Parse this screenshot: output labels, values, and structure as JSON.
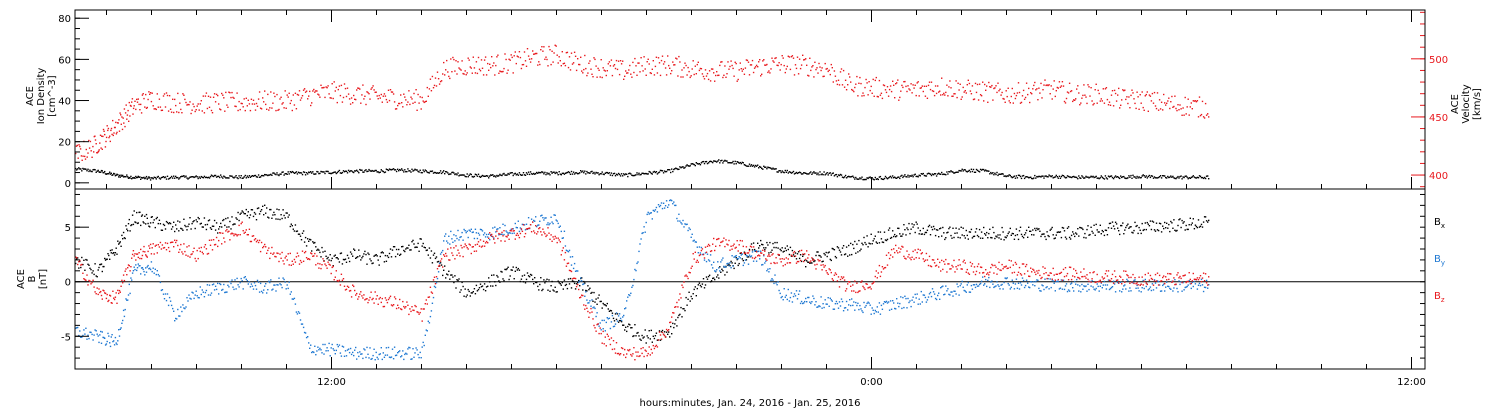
{
  "figure": {
    "xlabel": "hours:minutes, Jan. 24, 2016 - Jan. 25, 2016"
  },
  "chart_data": [
    {
      "type": "scatter",
      "panel": "plasma",
      "x_unit": "hours from 2016-01-24 00:00",
      "xlim": [
        6.3,
        36.3
      ],
      "x_ticks": [
        {
          "x": 12,
          "label": "12:00"
        },
        {
          "x": 24,
          "label": "0:00"
        },
        {
          "x": 36,
          "label": "12:00"
        }
      ],
      "left_axis": {
        "label_lines": [
          "ACE",
          "Ion Density",
          "[cm^-3]"
        ],
        "ylim": [
          -3,
          84
        ],
        "ticks": [
          0,
          20,
          40,
          60,
          80
        ],
        "color": "#000000"
      },
      "right_axis": {
        "label_lines": [
          "ACE",
          "Velocity",
          "[km/s]"
        ],
        "ylim": [
          388,
          542
        ],
        "ticks": [
          400,
          450,
          500
        ],
        "color": "#e8191e"
      },
      "series": [
        {
          "axis": "left",
          "color": "#000000",
          "x": [
            6.3,
            6.8,
            7.2,
            7.6,
            8.0,
            8.5,
            9.0,
            9.5,
            10.0,
            10.5,
            11.0,
            11.5,
            12.0,
            12.5,
            13.0,
            13.5,
            14.0,
            14.5,
            15.0,
            15.5,
            16.0,
            16.5,
            17.0,
            17.5,
            18.0,
            18.5,
            19.0,
            19.5,
            20.0,
            20.5,
            21.0,
            21.5,
            22.0,
            22.5,
            23.0,
            23.5,
            24.0,
            24.5,
            25.0,
            25.5,
            26.0,
            26.5,
            27.0,
            27.5,
            28.0,
            28.5,
            29.0,
            29.5,
            30.0,
            30.5,
            31.0,
            31.5
          ],
          "y": [
            7,
            6,
            4,
            3,
            2.5,
            3,
            3,
            3.5,
            3,
            4,
            5,
            5,
            5.5,
            6,
            6,
            6.5,
            6,
            5.5,
            4,
            3.5,
            4.5,
            5,
            5,
            5.5,
            5,
            4,
            5,
            6,
            9,
            11,
            10,
            8,
            6,
            5,
            5,
            3,
            2.5,
            3,
            4,
            4.5,
            6.5,
            6,
            3.5,
            3,
            3.5,
            3,
            3,
            3,
            3.5,
            3,
            3,
            3
          ]
        },
        {
          "axis": "right",
          "color": "#e8191e",
          "x": [
            6.3,
            6.7,
            7.0,
            7.3,
            7.6,
            8.0,
            8.5,
            9.0,
            9.5,
            10.0,
            10.5,
            11.0,
            11.5,
            12.0,
            12.5,
            13.0,
            13.5,
            14.0,
            14.5,
            15.0,
            15.5,
            16.0,
            16.5,
            17.0,
            17.5,
            18.0,
            18.5,
            19.0,
            19.5,
            20.0,
            20.5,
            21.0,
            21.5,
            22.0,
            22.5,
            23.0,
            23.5,
            24.0,
            24.5,
            25.0,
            25.5,
            26.0,
            26.5,
            27.0,
            27.5,
            28.0,
            28.5,
            29.0,
            29.5,
            30.0,
            30.5,
            31.0,
            31.5
          ],
          "y": [
            418,
            425,
            435,
            447,
            460,
            466,
            463,
            462,
            463,
            463,
            464,
            464,
            469,
            472,
            470,
            468,
            466,
            465,
            492,
            495,
            495,
            497,
            502,
            504,
            496,
            493,
            490,
            495,
            495,
            492,
            490,
            490,
            494,
            496,
            495,
            492,
            478,
            476,
            474,
            474,
            477,
            474,
            472,
            470,
            472,
            474,
            470,
            470,
            466,
            465,
            462,
            460,
            458
          ]
        }
      ]
    },
    {
      "type": "scatter",
      "panel": "magnetic-field",
      "x_unit": "hours from 2016-01-24 00:00",
      "xlim": [
        6.3,
        36.3
      ],
      "y_axis": {
        "label_lines": [
          "ACE",
          "B",
          "[nT]"
        ],
        "ylim": [
          -8,
          8.5
        ],
        "ticks": [
          -5,
          0,
          5
        ]
      },
      "zero_line": true,
      "series": [
        {
          "name": "Bx",
          "color": "#000000",
          "x": [
            6.3,
            6.8,
            7.2,
            7.6,
            8.0,
            8.5,
            9.0,
            9.5,
            10.0,
            10.5,
            11.0,
            11.5,
            12.0,
            12.5,
            13.0,
            13.5,
            14.0,
            14.5,
            15.0,
            15.5,
            16.0,
            16.5,
            17.0,
            17.5,
            18.0,
            18.5,
            19.0,
            19.5,
            20.0,
            20.5,
            21.0,
            21.5,
            22.0,
            22.5,
            23.0,
            23.5,
            24.0,
            24.5,
            25.0,
            25.5,
            26.0,
            26.5,
            27.0,
            27.5,
            28.0,
            28.5,
            29.0,
            29.5,
            30.0,
            30.5,
            31.0,
            31.5
          ],
          "y": [
            2,
            1,
            3,
            6,
            5.5,
            5,
            5.5,
            5,
            6,
            6.5,
            6,
            3.5,
            2,
            2.5,
            2,
            3,
            3.5,
            1,
            -1,
            0,
            1,
            0,
            -0.5,
            0,
            -2,
            -4,
            -5,
            -4.5,
            -1,
            0.5,
            2,
            3.5,
            3,
            2,
            2.5,
            3,
            4,
            4.5,
            5,
            4.5,
            4.5,
            4.5,
            4.5,
            4.5,
            4.5,
            4.5,
            4.8,
            5,
            5,
            5.2,
            5.3,
            5.5
          ]
        },
        {
          "name": "By",
          "color": "#1e78d2",
          "x": [
            6.3,
            6.8,
            7.2,
            7.6,
            8.0,
            8.5,
            9.0,
            9.5,
            10.0,
            10.5,
            11.0,
            11.5,
            12.0,
            12.5,
            13.0,
            13.5,
            14.0,
            14.5,
            15.0,
            15.5,
            16.0,
            16.5,
            17.0,
            17.5,
            18.0,
            18.5,
            19.0,
            19.5,
            20.0,
            20.5,
            21.0,
            21.5,
            22.0,
            22.5,
            23.0,
            23.5,
            24.0,
            24.5,
            25.0,
            25.5,
            26.0,
            26.5,
            27.0,
            27.5,
            28.0,
            28.5,
            29.0,
            29.5,
            30.0,
            30.5,
            31.0,
            31.5
          ],
          "y": [
            -4.5,
            -5,
            -5.5,
            1,
            1.5,
            -3,
            -1,
            -0.5,
            0,
            -0.5,
            0,
            -6,
            -6.2,
            -6.5,
            -6.5,
            -6.5,
            -6.5,
            4,
            4.5,
            4.5,
            5,
            5.5,
            6,
            0,
            -4,
            -3,
            6,
            7.5,
            4,
            1.5,
            2,
            2.5,
            -1,
            -1.5,
            -2,
            -2,
            -2.5,
            -2,
            -1.5,
            -1,
            -0.5,
            0,
            0,
            -0.2,
            -0.2,
            -0.3,
            -0.3,
            -0.3,
            -0.3,
            -0.3,
            -0.3,
            -0.3
          ]
        },
        {
          "name": "Bz",
          "color": "#e8191e",
          "x": [
            6.3,
            6.8,
            7.2,
            7.6,
            8.0,
            8.5,
            9.0,
            9.5,
            10.0,
            10.5,
            11.0,
            11.5,
            12.0,
            12.5,
            13.0,
            13.5,
            14.0,
            14.5,
            15.0,
            15.5,
            16.0,
            16.5,
            17.0,
            17.5,
            18.0,
            18.5,
            19.0,
            19.5,
            20.0,
            20.5,
            21.0,
            21.5,
            22.0,
            22.5,
            23.0,
            23.5,
            24.0,
            24.5,
            25.0,
            25.5,
            26.0,
            26.5,
            27.0,
            27.5,
            28.0,
            28.5,
            29.0,
            29.5,
            30.0,
            30.5,
            31.0,
            31.5
          ],
          "y": [
            2,
            -1,
            -1.5,
            2.5,
            3,
            3.5,
            2.5,
            4,
            5,
            3,
            2,
            2.5,
            1,
            -1,
            -1.5,
            -2,
            -3,
            2.5,
            3,
            4,
            4.5,
            5,
            4,
            -1,
            -5,
            -6.5,
            -6.5,
            -4,
            2,
            3.5,
            3.5,
            2.5,
            2,
            2.5,
            1,
            -0.5,
            0,
            3,
            2.5,
            1.5,
            1.5,
            1,
            1.5,
            1,
            0.8,
            0.8,
            0.5,
            0.5,
            0.3,
            0.3,
            0.3,
            0.3
          ]
        }
      ],
      "legend": [
        {
          "label": "B",
          "sub": "x",
          "color": "#000000"
        },
        {
          "label": "B",
          "sub": "y",
          "color": "#1e78d2"
        },
        {
          "label": "B",
          "sub": "z",
          "color": "#e8191e"
        }
      ]
    }
  ]
}
